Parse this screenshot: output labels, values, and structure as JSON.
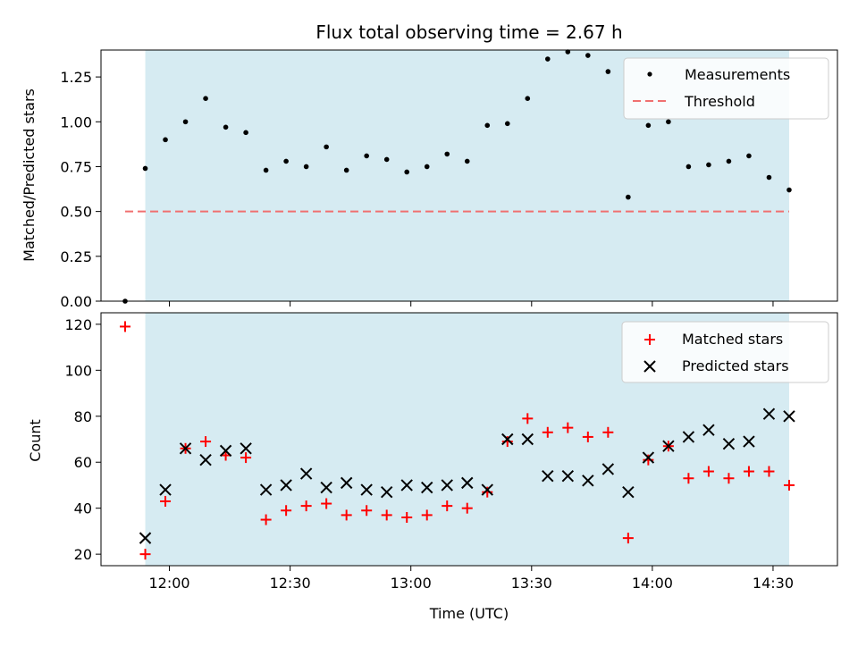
{
  "chart_data": [
    {
      "type": "scatter",
      "title": "Flux total observing time = 2.67 h",
      "xlabel": "",
      "ylabel": "Matched/Predicted stars",
      "ylim": [
        0,
        1.4
      ],
      "xlim": [
        "11:43",
        "14:46"
      ],
      "yticks": [
        "0.00",
        "0.25",
        "0.50",
        "0.75",
        "1.00",
        "1.25"
      ],
      "observing_window": [
        "11:54",
        "14:34"
      ],
      "legend_position": "top-right",
      "series": [
        {
          "name": "Measurements",
          "color": "#000000",
          "marker": "dot",
          "x": [
            "11:49",
            "11:54",
            "11:59",
            "12:04",
            "12:09",
            "12:14",
            "12:19",
            "12:24",
            "12:29",
            "12:34",
            "12:39",
            "12:44",
            "12:49",
            "12:54",
            "12:59",
            "13:04",
            "13:09",
            "13:14",
            "13:19",
            "13:24",
            "13:29",
            "13:34",
            "13:39",
            "13:44",
            "13:49",
            "13:54",
            "13:59",
            "14:04",
            "14:09",
            "14:14",
            "14:19",
            "14:24",
            "14:29",
            "14:34"
          ],
          "y": [
            0.0,
            0.74,
            0.9,
            1.0,
            1.13,
            0.97,
            0.94,
            0.73,
            0.78,
            0.75,
            0.86,
            0.73,
            0.81,
            0.79,
            0.72,
            0.75,
            0.82,
            0.78,
            0.98,
            0.99,
            1.13,
            1.35,
            1.39,
            1.37,
            1.28,
            0.58,
            0.98,
            1.0,
            0.75,
            0.76,
            0.78,
            0.81,
            0.69,
            0.62
          ]
        },
        {
          "name": "Threshold",
          "color": "#f07070",
          "style": "dashed",
          "x": [
            "11:49",
            "14:34"
          ],
          "y": [
            0.5,
            0.5
          ]
        }
      ]
    },
    {
      "type": "scatter",
      "title": "",
      "xlabel": "Time (UTC)",
      "ylabel": "Count",
      "ylim": [
        15,
        125
      ],
      "xlim": [
        "11:43",
        "14:46"
      ],
      "yticks": [
        20,
        40,
        60,
        80,
        100,
        120
      ],
      "xticks": [
        "12:00",
        "12:30",
        "13:00",
        "13:30",
        "14:00",
        "14:30"
      ],
      "observing_window": [
        "11:54",
        "14:34"
      ],
      "legend_position": "top-right",
      "series": [
        {
          "name": "Matched stars",
          "color": "#ff0000",
          "marker": "plus",
          "x": [
            "11:49",
            "11:54",
            "11:59",
            "12:04",
            "12:09",
            "12:14",
            "12:19",
            "12:24",
            "12:29",
            "12:34",
            "12:39",
            "12:44",
            "12:49",
            "12:54",
            "12:59",
            "13:04",
            "13:09",
            "13:14",
            "13:19",
            "13:24",
            "13:29",
            "13:34",
            "13:39",
            "13:44",
            "13:49",
            "13:54",
            "13:59",
            "14:04",
            "14:09",
            "14:14",
            "14:19",
            "14:24",
            "14:29",
            "14:34"
          ],
          "y": [
            119,
            20,
            43,
            66,
            69,
            63,
            62,
            35,
            39,
            41,
            42,
            37,
            39,
            37,
            36,
            37,
            41,
            40,
            47,
            69,
            79,
            73,
            75,
            71,
            73,
            27,
            61,
            67,
            53,
            56,
            53,
            56,
            56,
            50
          ]
        },
        {
          "name": "Predicted stars",
          "color": "#000000",
          "marker": "x",
          "x": [
            "11:54",
            "11:59",
            "12:04",
            "12:09",
            "12:14",
            "12:19",
            "12:24",
            "12:29",
            "12:34",
            "12:39",
            "12:44",
            "12:49",
            "12:54",
            "12:59",
            "13:04",
            "13:09",
            "13:14",
            "13:19",
            "13:24",
            "13:29",
            "13:34",
            "13:39",
            "13:44",
            "13:49",
            "13:54",
            "13:59",
            "14:04",
            "14:09",
            "14:14",
            "14:19",
            "14:24",
            "14:29",
            "14:34"
          ],
          "y": [
            27,
            48,
            66,
            61,
            65,
            66,
            48,
            50,
            55,
            49,
            51,
            48,
            47,
            50,
            49,
            50,
            51,
            48,
            70,
            70,
            54,
            54,
            52,
            57,
            47,
            62,
            67,
            71,
            74,
            68,
            69,
            81,
            80
          ]
        }
      ]
    }
  ]
}
